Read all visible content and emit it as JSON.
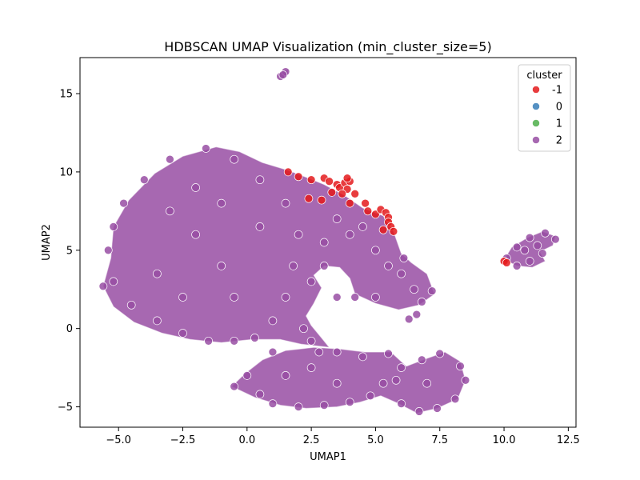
{
  "chart_data": {
    "type": "scatter",
    "title": "HDBSCAN UMAP Visualization (min_cluster_size=5)",
    "xlabel": "UMAP1",
    "ylabel": "UMAP2",
    "xlim": [
      -6.5,
      12.8
    ],
    "ylim": [
      -6.3,
      17.3
    ],
    "xticks": [
      -5.0,
      -2.5,
      0.0,
      2.5,
      5.0,
      7.5,
      10.0,
      12.5
    ],
    "xtick_labels": [
      "−5.0",
      "−2.5",
      "0.0",
      "2.5",
      "5.0",
      "7.5",
      "10.0",
      "12.5"
    ],
    "yticks": [
      -5,
      0,
      5,
      10,
      15
    ],
    "ytick_labels": [
      "−5",
      "0",
      "5",
      "10",
      "15"
    ],
    "grid": false,
    "legend": {
      "title": "cluster",
      "placement": "top-right",
      "entries": [
        {
          "label": "-1",
          "color": "#e41a1c"
        },
        {
          "label": "0",
          "color": "#377eb8"
        },
        {
          "label": "1",
          "color": "#4daf4a"
        },
        {
          "label": "2",
          "color": "#984ea3"
        }
      ]
    },
    "series": [
      {
        "name": "-1",
        "color": "#e41a1c",
        "points": [
          [
            1.6,
            10.0
          ],
          [
            2.0,
            9.7
          ],
          [
            2.5,
            9.5
          ],
          [
            3.0,
            9.6
          ],
          [
            3.2,
            9.4
          ],
          [
            3.5,
            9.2
          ],
          [
            3.6,
            9.0
          ],
          [
            3.8,
            9.3
          ],
          [
            3.9,
            8.9
          ],
          [
            4.0,
            9.4
          ],
          [
            3.7,
            8.6
          ],
          [
            3.3,
            8.7
          ],
          [
            2.9,
            8.2
          ],
          [
            2.4,
            8.3
          ],
          [
            4.0,
            8.0
          ],
          [
            4.2,
            8.6
          ],
          [
            4.6,
            8.0
          ],
          [
            4.7,
            7.5
          ],
          [
            5.0,
            7.3
          ],
          [
            5.2,
            7.6
          ],
          [
            5.4,
            7.4
          ],
          [
            5.5,
            7.1
          ],
          [
            5.5,
            6.8
          ],
          [
            5.6,
            6.5
          ],
          [
            5.3,
            6.3
          ],
          [
            5.7,
            6.2
          ],
          [
            3.9,
            9.6
          ],
          [
            10.0,
            4.3
          ],
          [
            10.1,
            4.2
          ]
        ]
      },
      {
        "name": "2",
        "color": "#984ea3",
        "points": [
          [
            1.3,
            16.1
          ],
          [
            1.5,
            16.4
          ],
          [
            1.4,
            16.2
          ],
          [
            -1.6,
            11.5
          ],
          [
            -3.0,
            10.8
          ],
          [
            -4.0,
            9.5
          ],
          [
            -4.8,
            8.0
          ],
          [
            -5.2,
            6.5
          ],
          [
            -5.4,
            5.0
          ],
          [
            -5.2,
            3.0
          ],
          [
            -5.6,
            2.7
          ],
          [
            -4.5,
            1.5
          ],
          [
            -3.5,
            0.5
          ],
          [
            -2.5,
            -0.3
          ],
          [
            -1.5,
            -0.8
          ],
          [
            -0.5,
            -0.8
          ],
          [
            0.3,
            -0.6
          ],
          [
            1.0,
            0.5
          ],
          [
            1.5,
            2.0
          ],
          [
            1.8,
            4.0
          ],
          [
            2.0,
            6.0
          ],
          [
            1.5,
            8.0
          ],
          [
            0.5,
            9.5
          ],
          [
            -0.5,
            10.8
          ],
          [
            -2.0,
            9.0
          ],
          [
            -3.0,
            7.5
          ],
          [
            -2.0,
            6.0
          ],
          [
            -1.0,
            4.0
          ],
          [
            -3.5,
            3.5
          ],
          [
            -2.5,
            2.0
          ],
          [
            -0.5,
            2.0
          ],
          [
            0.5,
            6.5
          ],
          [
            -1.0,
            8.0
          ],
          [
            3.0,
            5.5
          ],
          [
            3.5,
            7.0
          ],
          [
            4.0,
            6.0
          ],
          [
            3.0,
            4.0
          ],
          [
            2.5,
            3.0
          ],
          [
            3.5,
            2.0
          ],
          [
            4.5,
            6.5
          ],
          [
            5.0,
            5.0
          ],
          [
            5.5,
            4.0
          ],
          [
            6.0,
            3.5
          ],
          [
            6.5,
            2.5
          ],
          [
            7.2,
            2.4
          ],
          [
            6.8,
            1.7
          ],
          [
            5.0,
            2.0
          ],
          [
            4.2,
            2.0
          ],
          [
            6.3,
            0.6
          ],
          [
            6.6,
            0.9
          ],
          [
            6.1,
            4.5
          ],
          [
            2.2,
            0.0
          ],
          [
            2.5,
            -0.8
          ],
          [
            2.8,
            -1.5
          ],
          [
            3.5,
            -1.5
          ],
          [
            4.5,
            -1.8
          ],
          [
            5.5,
            -1.6
          ],
          [
            -0.5,
            -3.7
          ],
          [
            0.0,
            -3.0
          ],
          [
            0.5,
            -4.2
          ],
          [
            1.0,
            -4.8
          ],
          [
            2.0,
            -5.0
          ],
          [
            3.0,
            -4.9
          ],
          [
            4.0,
            -4.7
          ],
          [
            4.8,
            -4.3
          ],
          [
            5.3,
            -3.5
          ],
          [
            5.8,
            -3.3
          ],
          [
            6.0,
            -2.5
          ],
          [
            6.8,
            -2.0
          ],
          [
            7.5,
            -1.6
          ],
          [
            8.3,
            -2.4
          ],
          [
            8.5,
            -3.3
          ],
          [
            8.1,
            -4.5
          ],
          [
            7.4,
            -5.1
          ],
          [
            6.7,
            -5.3
          ],
          [
            6.0,
            -4.8
          ],
          [
            7.0,
            -3.5
          ],
          [
            1.5,
            -3.0
          ],
          [
            2.5,
            -2.5
          ],
          [
            3.5,
            -3.5
          ],
          [
            1.0,
            -1.5
          ],
          [
            10.1,
            4.5
          ],
          [
            10.5,
            5.2
          ],
          [
            11.0,
            5.8
          ],
          [
            11.6,
            6.1
          ],
          [
            12.0,
            5.7
          ],
          [
            11.5,
            4.8
          ],
          [
            11.0,
            4.3
          ],
          [
            10.5,
            4.0
          ],
          [
            10.8,
            5.0
          ],
          [
            11.3,
            5.3
          ]
        ]
      }
    ]
  }
}
